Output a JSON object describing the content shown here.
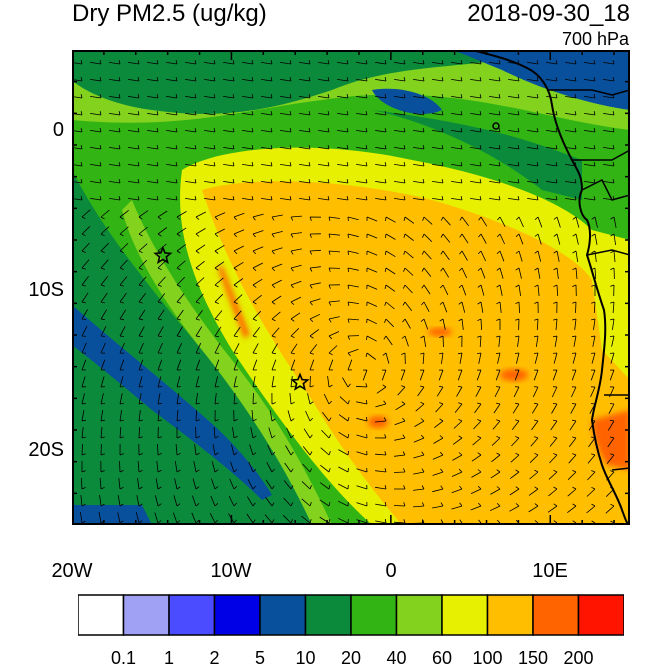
{
  "header": {
    "title": "Dry PM2.5 (ug/kg)",
    "datetime": "2018-09-30_18",
    "level": "700 hPa"
  },
  "map": {
    "region": "Southeast Atlantic / southwest Africa",
    "lon_range": [
      -20,
      15
    ],
    "lat_range": [
      -25,
      5
    ],
    "x_ticks": [
      "20W",
      "10W",
      "0",
      "10E"
    ],
    "y_ticks": [
      "0",
      "10S",
      "20S"
    ],
    "markers": [
      {
        "name": "star-marker-1",
        "lon": -14.3,
        "lat": -8.0
      },
      {
        "name": "star-marker-2",
        "lon": -5.7,
        "lat": -16.0
      }
    ]
  },
  "colorbar": {
    "labels": [
      "0.1",
      "1",
      "2",
      "5",
      "10",
      "20",
      "40",
      "60",
      "100",
      "150",
      "200"
    ],
    "colors": [
      "#ffffff",
      "#a0a0f5",
      "#4b4bff",
      "#0000e6",
      "#08509c",
      "#0c8a3c",
      "#32b414",
      "#82d21e",
      "#e6f000",
      "#ffbe00",
      "#ff6400",
      "#ff1400"
    ]
  }
}
